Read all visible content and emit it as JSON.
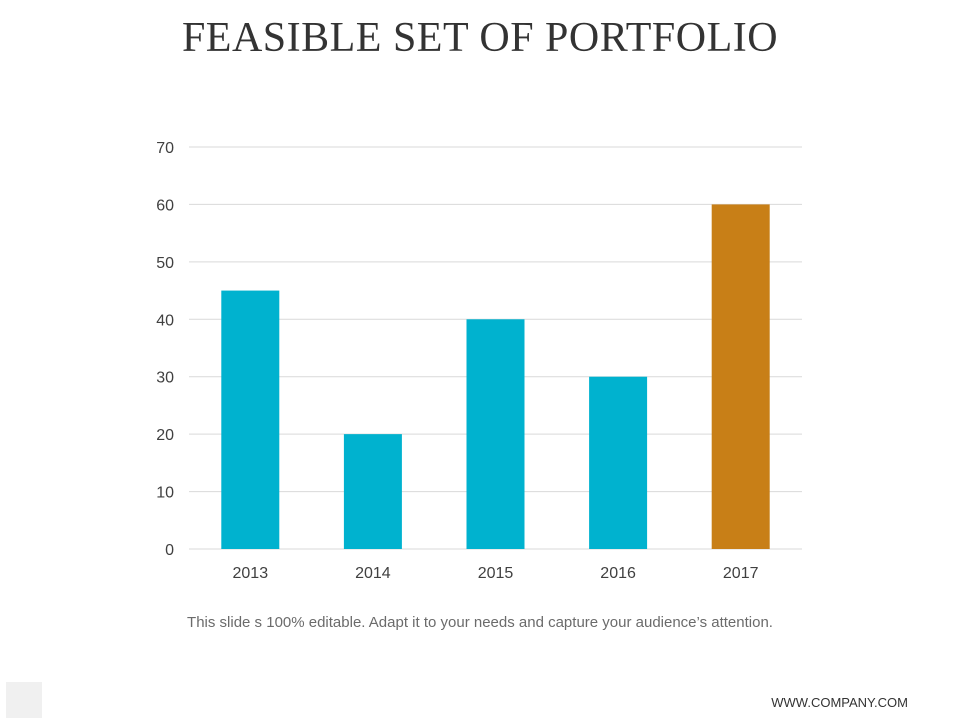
{
  "slide": {
    "title": "FEASIBLE SET OF PORTFOLIO",
    "caption": "This slide s 100% editable. Adapt it to your needs and capture your audience’s attention.",
    "footer_url": "WWW.COMPANY.COM"
  },
  "colors": {
    "bar_primary": "#00B2CF",
    "bar_highlight": "#C87F17",
    "grid": "#D9D9D9",
    "tick_text": "#404040"
  },
  "chart_data": {
    "type": "bar",
    "title": "",
    "xlabel": "",
    "ylabel": "",
    "categories": [
      "2013",
      "2014",
      "2015",
      "2016",
      "2017"
    ],
    "values": [
      45,
      20,
      40,
      30,
      60
    ],
    "highlight_index": 4,
    "ylim": [
      0,
      70
    ],
    "yticks": [
      0,
      10,
      20,
      30,
      40,
      50,
      60,
      70
    ],
    "grid": true,
    "legend": "none"
  }
}
